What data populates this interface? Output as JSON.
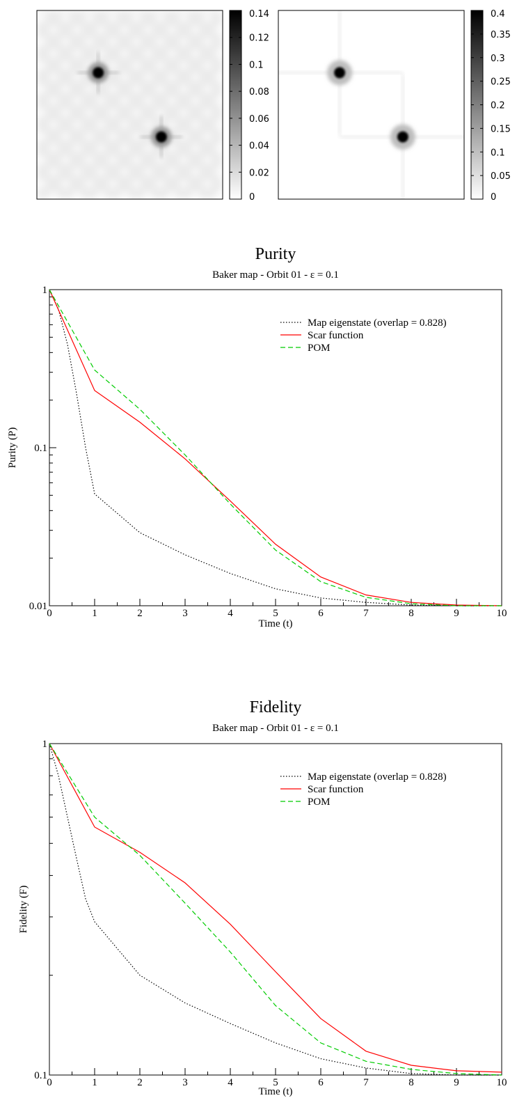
{
  "chart_data": [
    {
      "type": "heatmap",
      "colorbar": {
        "ticks": [
          "0",
          "0.02",
          "0.04",
          "0.06",
          "0.08",
          "0.1",
          "0.12",
          "0.14"
        ],
        "range": [
          0,
          0.14
        ],
        "colormap": "white-to-black"
      },
      "background_value": 0.03,
      "peaks": [
        {
          "x": 0.33,
          "y": 0.67,
          "value": 0.14
        },
        {
          "x": 0.67,
          "y": 0.33,
          "value": 0.14
        }
      ]
    },
    {
      "type": "heatmap",
      "colorbar": {
        "ticks": [
          "0",
          "0.05",
          "0.1",
          "0.15",
          "0.2",
          "0.25",
          "0.3",
          "0.35",
          "0.4"
        ],
        "range": [
          0,
          0.4
        ],
        "colormap": "white-to-black"
      },
      "background_value": 0.0,
      "peaks": [
        {
          "x": 0.33,
          "y": 0.67,
          "value": 0.4
        },
        {
          "x": 0.67,
          "y": 0.33,
          "value": 0.4
        }
      ]
    },
    {
      "type": "line",
      "title": "Purity",
      "subtitle": "Baker map - Orbit 01 - ε = 0.1",
      "xlabel": "Time (t)",
      "ylabel": "Purity (P)",
      "xlim": [
        0,
        10
      ],
      "ylim": [
        0.01,
        1
      ],
      "yscale": "log",
      "xticks": [
        "0",
        "1",
        "2",
        "3",
        "4",
        "5",
        "6",
        "7",
        "8",
        "9",
        "10"
      ],
      "yticks": [
        {
          "value": 0.01,
          "label": "0.01"
        },
        {
          "value": 0.1,
          "label": "0.1"
        },
        {
          "value": 1,
          "label": "1"
        }
      ],
      "legend_position": "top-right",
      "x": [
        0,
        1,
        2,
        3,
        4,
        5,
        6,
        7,
        8,
        9,
        10
      ],
      "series": [
        {
          "name": "Map eigenstate (overlap = 0.828)",
          "style": "dotted",
          "color": "#000000",
          "x": [
            0,
            0.2,
            0.4,
            0.6,
            0.8,
            1,
            2,
            3,
            4,
            5,
            6,
            7,
            8,
            9,
            10
          ],
          "values": [
            1,
            0.75,
            0.45,
            0.22,
            0.1,
            0.051,
            0.029,
            0.021,
            0.016,
            0.0128,
            0.0112,
            0.0105,
            0.0101,
            0.01,
            0.01
          ]
        },
        {
          "name": "Scar function",
          "style": "solid",
          "color": "#ff0000",
          "values": [
            1,
            0.23,
            0.145,
            0.085,
            0.046,
            0.0245,
            0.0152,
            0.0117,
            0.0105,
            0.0101,
            0.01
          ]
        },
        {
          "name": "POM",
          "style": "dashed",
          "color": "#00cc00",
          "values": [
            1,
            0.31,
            0.175,
            0.09,
            0.044,
            0.0225,
            0.0142,
            0.0113,
            0.0103,
            0.01,
            0.01
          ]
        }
      ]
    },
    {
      "type": "line",
      "title": "Fidelity",
      "subtitle": "Baker map - Orbit 01 - ε = 0.1",
      "xlabel": "Time (t)",
      "ylabel": "Fidelity (F)",
      "xlim": [
        0,
        10
      ],
      "ylim": [
        0.1,
        1
      ],
      "yscale": "log",
      "xticks": [
        "0",
        "1",
        "2",
        "3",
        "4",
        "5",
        "6",
        "7",
        "8",
        "9",
        "10"
      ],
      "yticks": [
        {
          "value": 0.1,
          "label": "0.1"
        },
        {
          "value": 1,
          "label": "1"
        }
      ],
      "legend_position": "top-right",
      "x": [
        0,
        1,
        2,
        3,
        4,
        5,
        6,
        7,
        8,
        9,
        10
      ],
      "series": [
        {
          "name": "Map eigenstate (overlap = 0.828)",
          "style": "dotted",
          "color": "#000000",
          "x": [
            0,
            0.2,
            0.4,
            0.6,
            0.8,
            1,
            2,
            3,
            4,
            5,
            6,
            7,
            8,
            9,
            10
          ],
          "values": [
            1,
            0.8,
            0.6,
            0.45,
            0.34,
            0.29,
            0.2,
            0.165,
            0.143,
            0.125,
            0.112,
            0.105,
            0.101,
            0.1,
            0.1
          ]
        },
        {
          "name": "Scar function",
          "style": "solid",
          "color": "#ff0000",
          "values": [
            1,
            0.56,
            0.47,
            0.38,
            0.285,
            0.205,
            0.148,
            0.118,
            0.107,
            0.103,
            0.102
          ]
        },
        {
          "name": "POM",
          "style": "dashed",
          "color": "#00cc00",
          "values": [
            1,
            0.6,
            0.46,
            0.33,
            0.235,
            0.162,
            0.125,
            0.11,
            0.104,
            0.101,
            0.1
          ]
        }
      ]
    }
  ]
}
